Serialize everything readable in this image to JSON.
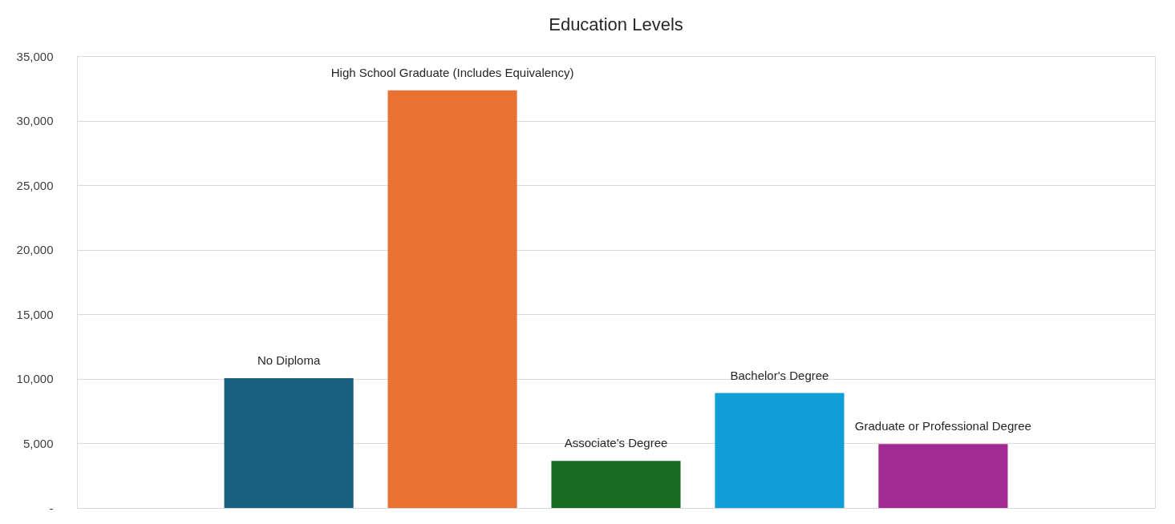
{
  "chart_data": {
    "type": "bar",
    "title": "Education Levels",
    "categories": [
      "No Diploma",
      "High School Graduate (Includes Equivalency)",
      "Associate's Degree",
      "Bachelor's Degree",
      "Graduate or Professional Degree"
    ],
    "values": [
      10050,
      32350,
      3650,
      8900,
      4950
    ],
    "colors": [
      "#17607f",
      "#e97132",
      "#196b24",
      "#0f9ed5",
      "#a02b93"
    ],
    "ylim": [
      0,
      35000
    ],
    "yticks": [
      {
        "value": 0,
        "label": "-"
      },
      {
        "value": 5000,
        "label": "5,000"
      },
      {
        "value": 10000,
        "label": "10,000"
      },
      {
        "value": 15000,
        "label": "15,000"
      },
      {
        "value": 20000,
        "label": "20,000"
      },
      {
        "value": 25000,
        "label": "25,000"
      },
      {
        "value": 30000,
        "label": "30,000"
      },
      {
        "value": 35000,
        "label": "35,000"
      }
    ],
    "grid": "y",
    "tick_labels": "y",
    "legend": false
  }
}
